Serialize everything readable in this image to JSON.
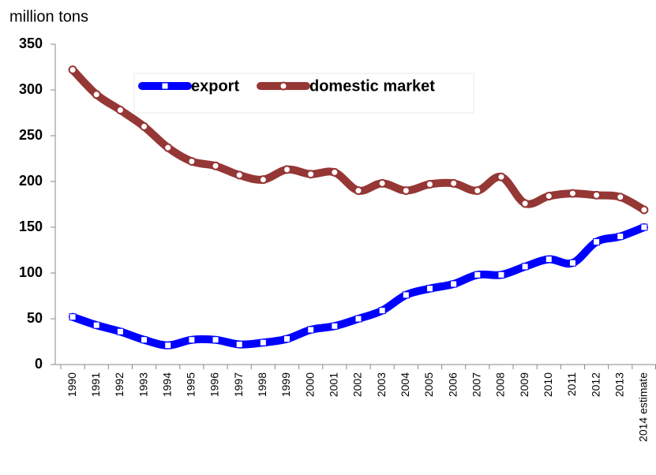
{
  "chart_data": {
    "type": "line",
    "ylabel": "million tons",
    "categories": [
      "1990",
      "1991",
      "1992",
      "1993",
      "1994",
      "1995",
      "1996",
      "1997",
      "1998",
      "1999",
      "2000",
      "2001",
      "2002",
      "2003",
      "2004",
      "2005",
      "2006",
      "2007",
      "2008",
      "2009",
      "2010",
      "2011",
      "2012",
      "2013",
      "2014 estimate"
    ],
    "series": [
      {
        "name": "export",
        "color": "#0000ff",
        "values": [
          52,
          43,
          36,
          27,
          21,
          27,
          27,
          22,
          24,
          28,
          38,
          42,
          50,
          59,
          76,
          83,
          88,
          98,
          98,
          107,
          115,
          111,
          134,
          140,
          150
        ]
      },
      {
        "name": "domestic market",
        "color": "#953735",
        "values": [
          322,
          295,
          278,
          260,
          237,
          222,
          217,
          207,
          202,
          213,
          208,
          210,
          190,
          198,
          190,
          197,
          198,
          190,
          205,
          176,
          184,
          187,
          185,
          183,
          169
        ]
      }
    ],
    "ylim": [
      0,
      350
    ],
    "yticks": [
      0,
      50,
      100,
      150,
      200,
      250,
      300,
      350
    ],
    "grid": false
  }
}
